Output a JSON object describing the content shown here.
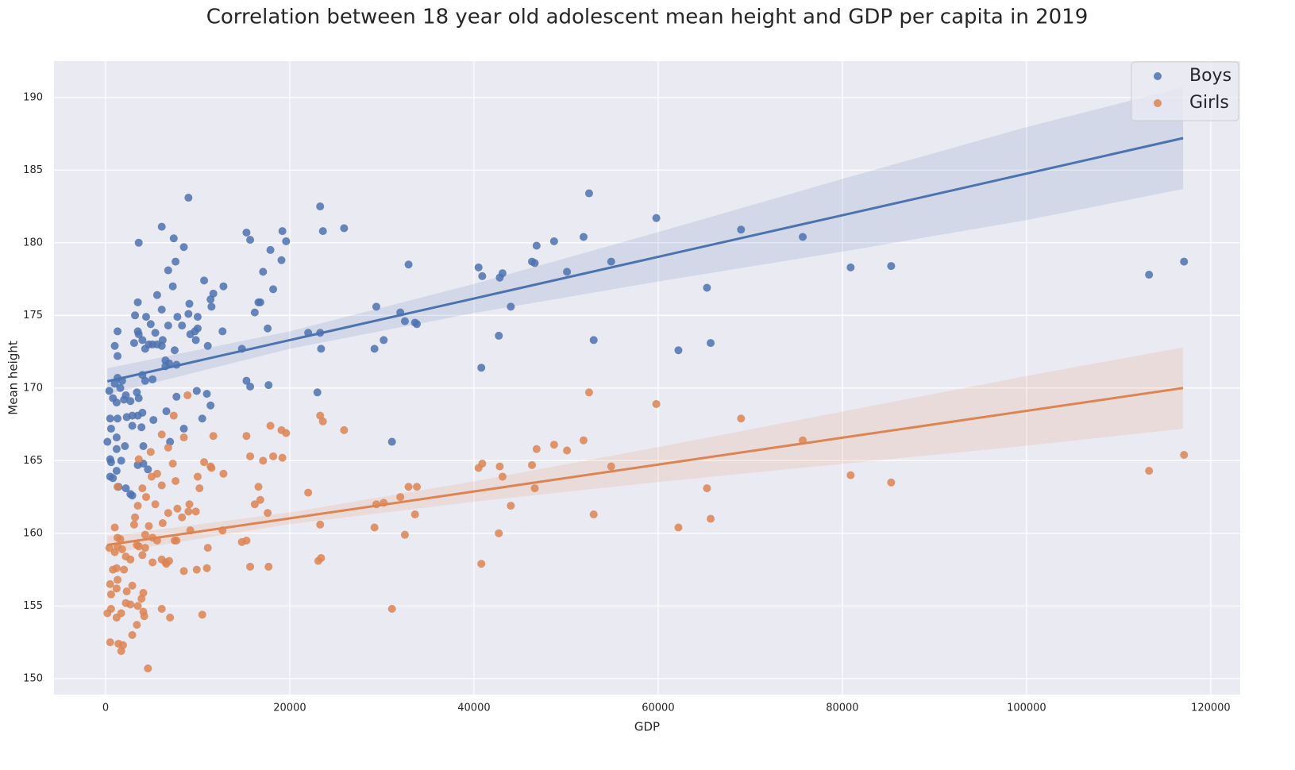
{
  "chart_data": {
    "type": "scatter",
    "title": "Correlation between 18 year old adolescent mean height and GDP per capita in 2019",
    "xlabel": "GDP",
    "ylabel": "Mean height",
    "xlim": [
      -5600,
      123200
    ],
    "ylim": [
      148.9,
      192.5
    ],
    "xticks": [
      0,
      20000,
      40000,
      60000,
      80000,
      100000,
      120000
    ],
    "yticks": [
      150,
      155,
      160,
      165,
      170,
      175,
      180,
      185,
      190
    ],
    "grid": true,
    "legend": "upper right",
    "series": [
      {
        "name": "Boys",
        "color": "#4c72b0",
        "x": [
          9000,
          6100,
          7400,
          3600,
          8500,
          7600,
          6800,
          7300,
          10700,
          12800,
          5600,
          11700,
          11400,
          11500,
          9100,
          3500,
          6100,
          9000,
          7800,
          10000,
          3200,
          4400,
          4900,
          8300,
          6800,
          5400,
          10000,
          9700,
          12700,
          3600,
          3500,
          4000,
          6200,
          9200,
          9800,
          3100,
          4700,
          5100,
          5600,
          6100,
          11100,
          4300,
          7500,
          1000,
          1300,
          1300,
          6500,
          6900,
          7700,
          6500,
          4000,
          5100,
          4300,
          1300,
          1800,
          1000,
          1600,
          400,
          2200,
          3400,
          7700,
          9900,
          11000,
          2000,
          3600,
          2700,
          800,
          1200,
          4000,
          6600,
          2900,
          3500,
          500,
          1300,
          2300,
          8500,
          3900,
          2900,
          600,
          1200,
          5200,
          10500,
          11400,
          200,
          7000,
          2100,
          1200,
          4100,
          500,
          1700,
          600,
          3500,
          4100,
          4600,
          1200,
          500,
          800,
          1400,
          2200,
          2700,
          2900,
          14800,
          15300,
          15700,
          17700,
          15300,
          15700,
          16200,
          16600,
          16800,
          17100,
          17600,
          17900,
          18200,
          19200,
          19100,
          19600,
          22000,
          23300,
          23400,
          23000,
          23300,
          23600,
          25900,
          29400,
          29200,
          30200,
          31100,
          32000,
          32500,
          32900,
          33600,
          33800,
          40500,
          40900,
          40800,
          42700,
          42800,
          43100,
          44000,
          46300,
          46600,
          46800,
          48700,
          50100,
          51900,
          52500,
          53000,
          54900,
          59800,
          62200,
          65300,
          65700,
          69000,
          75700,
          80900,
          85300,
          113300,
          117100
        ],
        "values": [
          183.1,
          181.1,
          180.3,
          180.0,
          179.7,
          178.7,
          178.1,
          177.0,
          177.4,
          177.0,
          176.4,
          176.5,
          176.1,
          175.6,
          175.8,
          175.9,
          175.4,
          175.1,
          174.9,
          174.9,
          175.0,
          174.9,
          174.4,
          174.3,
          174.3,
          173.8,
          174.1,
          173.9,
          173.9,
          173.7,
          173.9,
          173.3,
          173.3,
          173.7,
          173.3,
          173.1,
          173.0,
          173.0,
          173.0,
          172.9,
          172.9,
          172.7,
          172.6,
          172.9,
          173.9,
          172.2,
          171.9,
          171.7,
          171.6,
          171.5,
          170.9,
          170.6,
          170.5,
          170.7,
          170.5,
          170.3,
          170.0,
          169.8,
          169.5,
          169.7,
          169.4,
          169.8,
          169.6,
          169.2,
          169.3,
          169.1,
          169.3,
          169.0,
          168.3,
          168.4,
          168.1,
          168.1,
          167.9,
          167.9,
          168.0,
          167.2,
          167.3,
          167.4,
          167.2,
          166.6,
          167.8,
          167.9,
          168.8,
          166.3,
          166.3,
          166.0,
          165.8,
          166.0,
          165.1,
          165.0,
          164.9,
          164.7,
          164.8,
          164.4,
          164.3,
          163.9,
          163.8,
          163.2,
          163.1,
          162.7,
          162.6,
          172.7,
          170.5,
          170.1,
          170.2,
          180.7,
          180.2,
          175.2,
          175.9,
          175.9,
          178.0,
          174.1,
          179.5,
          176.8,
          180.8,
          178.8,
          180.1,
          173.8,
          173.8,
          172.7,
          169.7,
          182.5,
          180.8,
          181.0,
          175.6,
          172.7,
          173.3,
          166.3,
          175.2,
          174.6,
          178.5,
          174.5,
          174.4,
          178.3,
          177.7,
          171.4,
          173.6,
          177.6,
          177.9,
          175.6,
          178.7,
          178.6,
          179.8,
          180.1,
          178.0,
          180.4,
          183.4,
          173.3,
          178.7,
          181.7,
          172.6,
          176.9,
          173.1,
          180.9,
          180.4,
          178.3,
          178.4,
          177.8,
          178.7
        ],
        "trend": {
          "x": [
            200,
            20000,
            40000,
            60000,
            80000,
            100000,
            117000
          ],
          "values": [
            170.46,
            173.3,
            176.16,
            179.03,
            181.89,
            184.76,
            187.2
          ],
          "lower": [
            169.56,
            172.7,
            175.16,
            177.33,
            179.39,
            181.56,
            183.7
          ],
          "upper": [
            171.36,
            173.9,
            177.16,
            180.73,
            184.39,
            187.96,
            190.7
          ]
        }
      },
      {
        "name": "Girls",
        "color": "#dd8452",
        "x": [
          8900,
          7400,
          6100,
          8500,
          7600,
          6800,
          7300,
          10700,
          12800,
          5600,
          11700,
          11400,
          11500,
          9100,
          3500,
          6100,
          9000,
          7800,
          10000,
          10200,
          3200,
          4400,
          4900,
          8300,
          6800,
          5400,
          9800,
          12700,
          3600,
          4000,
          6200,
          9200,
          3100,
          4700,
          5100,
          5600,
          6100,
          11100,
          4300,
          7500,
          1000,
          1300,
          1300,
          6500,
          6900,
          7700,
          4000,
          5100,
          4300,
          1300,
          1800,
          1000,
          1600,
          400,
          2200,
          3400,
          9900,
          11000,
          2000,
          3600,
          2700,
          800,
          1200,
          6600,
          8500,
          2900,
          500,
          1300,
          2300,
          3900,
          600,
          1200,
          4100,
          1700,
          600,
          3500,
          4100,
          200,
          1200,
          500,
          1400,
          2200,
          2700,
          2900,
          1700,
          1900,
          3400,
          4600,
          6100,
          7000,
          10500,
          4200,
          5000,
          14800,
          15300,
          15700,
          17700,
          15300,
          15700,
          16200,
          16600,
          16800,
          17100,
          17600,
          17900,
          18200,
          19200,
          19100,
          19600,
          22000,
          23300,
          23600,
          23300,
          23100,
          23400,
          25900,
          29400,
          29200,
          30200,
          31100,
          32000,
          32500,
          32900,
          33600,
          33800,
          40500,
          40900,
          40800,
          42700,
          42800,
          43100,
          44000,
          46300,
          46600,
          46800,
          48700,
          50100,
          51900,
          52500,
          53000,
          54900,
          59800,
          62200,
          65300,
          65700,
          69000,
          75700,
          80900,
          85300,
          113300,
          117100
        ],
        "values": [
          169.5,
          168.1,
          166.8,
          166.6,
          163.6,
          165.9,
          164.8,
          164.9,
          164.1,
          164.1,
          166.7,
          164.6,
          164.5,
          162.0,
          161.9,
          163.3,
          161.5,
          161.7,
          163.9,
          163.1,
          161.1,
          162.5,
          165.6,
          161.1,
          161.4,
          162.0,
          161.5,
          160.2,
          165.1,
          163.1,
          160.7,
          160.2,
          160.6,
          160.5,
          159.7,
          159.5,
          158.2,
          159.0,
          159.9,
          159.5,
          160.4,
          163.2,
          159.7,
          158.0,
          158.1,
          159.5,
          158.5,
          158.0,
          159.0,
          159.1,
          158.9,
          158.7,
          159.6,
          159.0,
          158.4,
          159.2,
          157.5,
          157.6,
          157.5,
          159.1,
          158.2,
          157.5,
          157.6,
          157.9,
          157.4,
          156.4,
          156.5,
          156.8,
          156.0,
          155.5,
          155.8,
          156.2,
          155.9,
          154.5,
          154.8,
          155.0,
          154.6,
          154.5,
          154.2,
          152.5,
          152.4,
          155.2,
          155.1,
          153.0,
          151.9,
          152.3,
          153.7,
          150.7,
          154.8,
          154.2,
          154.4,
          154.3,
          163.9,
          159.4,
          159.5,
          157.7,
          157.7,
          166.7,
          165.3,
          162.0,
          163.2,
          162.3,
          165.0,
          161.4,
          167.4,
          165.3,
          165.2,
          167.1,
          166.9,
          162.8,
          168.1,
          167.7,
          160.6,
          158.1,
          158.3,
          167.1,
          162.0,
          160.4,
          162.1,
          154.8,
          162.5,
          159.9,
          163.2,
          161.3,
          163.2,
          164.5,
          164.8,
          157.9,
          160.0,
          164.6,
          163.9,
          161.9,
          164.7,
          163.1,
          165.8,
          166.1,
          165.7,
          166.4,
          169.7,
          161.3,
          164.6,
          168.9,
          160.4,
          163.1,
          161.0,
          167.9,
          166.4,
          164.0,
          163.5,
          164.3,
          165.4
        ],
        "trend": {
          "x": [
            200,
            20000,
            40000,
            60000,
            80000,
            100000,
            117000
          ],
          "values": [
            159.2,
            161.03,
            162.88,
            164.73,
            166.58,
            168.43,
            170.0
          ],
          "lower": [
            158.6,
            160.63,
            162.18,
            163.53,
            164.78,
            166.03,
            167.2
          ],
          "upper": [
            159.8,
            161.43,
            163.58,
            165.93,
            168.38,
            170.83,
            172.8
          ]
        }
      }
    ]
  }
}
